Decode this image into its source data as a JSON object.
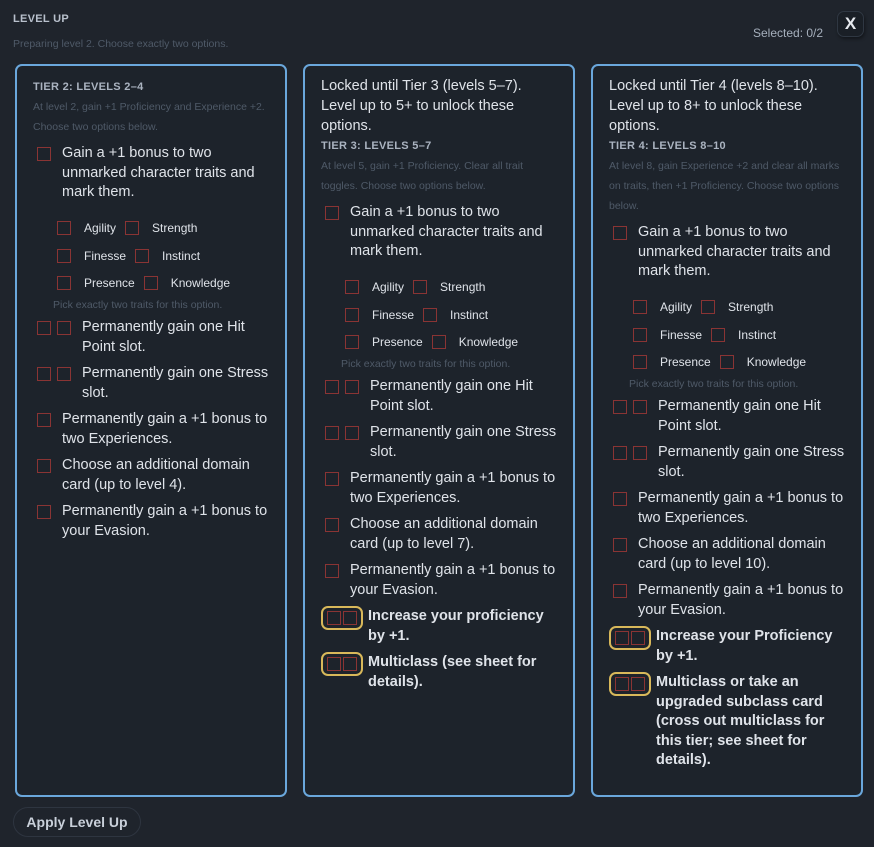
{
  "header": {
    "title": "LEVEL UP",
    "subtitle": "Preparing level 2. Choose exactly two options.",
    "selected": "Selected: 0/2",
    "close_label": "X"
  },
  "colors": {
    "card_border": "#6aa7dc",
    "checkbox_border": "#8a3434",
    "highlight_border": "#d8b85a",
    "background": "#1f242c"
  },
  "tiers": [
    {
      "locked": "",
      "title": "TIER 2: LEVELS 2–4",
      "desc": "At level 2, gain +1 Proficiency and Experience +2. Choose two options below.",
      "traits": [
        "Agility",
        "Strength",
        "Finesse",
        "Instinct",
        "Presence",
        "Knowledge"
      ],
      "trait_hint": "Pick exactly two traits for this option.",
      "options": [
        {
          "type": "traits",
          "text": "Gain a +1 bonus to two unmarked character traits and mark them."
        },
        {
          "type": "double",
          "text": "Permanently gain one Hit Point slot."
        },
        {
          "type": "double",
          "text": "Permanently gain one Stress slot."
        },
        {
          "type": "single",
          "text": "Permanently gain a +1 bonus to two Experiences."
        },
        {
          "type": "single",
          "text": "Choose an additional domain card (up to level 4)."
        },
        {
          "type": "single",
          "text": "Permanently gain a +1 bonus to your Evasion."
        }
      ]
    },
    {
      "locked": "Locked until Tier 3 (levels 5–7). Level up to 5+ to unlock these options.",
      "title": "TIER 3: LEVELS 5–7",
      "desc": "At level 5, gain +1 Proficiency. Clear all trait toggles. Choose two options below.",
      "traits": [
        "Agility",
        "Strength",
        "Finesse",
        "Instinct",
        "Presence",
        "Knowledge"
      ],
      "trait_hint": "Pick exactly two traits for this option.",
      "options": [
        {
          "type": "traits",
          "text": "Gain a +1 bonus to two unmarked character traits and mark them."
        },
        {
          "type": "double",
          "text": "Permanently gain one Hit Point slot."
        },
        {
          "type": "double",
          "text": "Permanently gain one Stress slot."
        },
        {
          "type": "single",
          "text": "Permanently gain a +1 bonus to two Experiences."
        },
        {
          "type": "single",
          "text": "Choose an additional domain card (up to level 7)."
        },
        {
          "type": "single",
          "text": "Permanently gain a +1 bonus to your Evasion."
        },
        {
          "type": "gold",
          "text": "Increase your proficiency by +1."
        },
        {
          "type": "gold",
          "text": "Multiclass (see sheet for details)."
        }
      ]
    },
    {
      "locked": "Locked until Tier 4 (levels 8–10). Level up to 8+ to unlock these options.",
      "title": "TIER 4: LEVELS 8–10",
      "desc": "At level 8, gain Experience +2 and clear all marks on traits, then +1 Proficiency. Choose two options below.",
      "traits": [
        "Agility",
        "Strength",
        "Finesse",
        "Instinct",
        "Presence",
        "Knowledge"
      ],
      "trait_hint": "Pick exactly two traits for this option.",
      "options": [
        {
          "type": "traits",
          "text": "Gain a +1 bonus to two unmarked character traits and mark them."
        },
        {
          "type": "double",
          "text": "Permanently gain one Hit Point slot."
        },
        {
          "type": "double",
          "text": "Permanently gain one Stress slot."
        },
        {
          "type": "single",
          "text": "Permanently gain a +1 bonus to two Experiences."
        },
        {
          "type": "single",
          "text": "Choose an additional domain card (up to level 10)."
        },
        {
          "type": "single",
          "text": "Permanently gain a +1 bonus to your Evasion."
        },
        {
          "type": "gold",
          "text": "Increase your Proficiency by +1."
        },
        {
          "type": "gold",
          "text": "Multiclass or take an upgraded subclass card (cross out multiclass for this tier; see sheet for details)."
        }
      ]
    }
  ],
  "footer": {
    "apply_label": "Apply Level Up"
  }
}
